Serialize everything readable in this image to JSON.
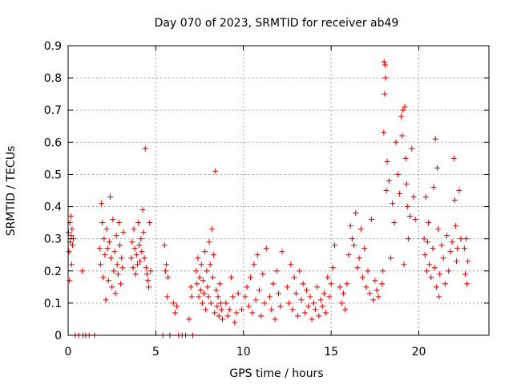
{
  "chart_data": {
    "type": "scatter",
    "title": "Day 070 of 2023, SRMTID for receiver ab49",
    "xlabel": "GPS time / hours",
    "ylabel": "SRMTID / TECUs",
    "xlim": [
      0,
      24
    ],
    "ylim": [
      0,
      0.9
    ],
    "xticks": [
      0,
      5,
      10,
      15,
      20
    ],
    "yticks": [
      0,
      0.1,
      0.2,
      0.3,
      0.4,
      0.5,
      0.6,
      0.7,
      0.8,
      0.9
    ],
    "xtick_labels": [
      "0",
      "5",
      "10",
      "15",
      "20"
    ],
    "ytick_labels": [
      "0",
      "0.1",
      "0.2",
      "0.3",
      "0.4",
      "0.5",
      "0.6",
      "0.7",
      "0.8",
      "0.9"
    ],
    "grid": true,
    "marker": "+",
    "color": "#ff0000",
    "series": [
      {
        "name": "SRMTID",
        "x": [
          0.02,
          0.05,
          0.08,
          0.1,
          0.12,
          0.15,
          0.18,
          0.2,
          0.22,
          0.25,
          0.3,
          0.4,
          0.6,
          0.8,
          0.85,
          1.0,
          1.2,
          1.5,
          1.8,
          1.85,
          1.9,
          1.95,
          2.0,
          2.05,
          2.1,
          2.15,
          2.2,
          2.25,
          2.3,
          2.35,
          2.4,
          2.45,
          2.5,
          2.55,
          2.6,
          2.65,
          2.7,
          2.75,
          2.8,
          2.85,
          2.9,
          2.95,
          3.0,
          3.05,
          3.1,
          3.15,
          3.6,
          3.65,
          3.7,
          3.75,
          3.8,
          3.85,
          3.9,
          3.95,
          4.0,
          4.05,
          4.1,
          4.15,
          4.2,
          4.25,
          4.3,
          4.35,
          4.4,
          4.45,
          4.5,
          4.55,
          4.6,
          4.65,
          4.7,
          5.4,
          5.5,
          5.55,
          5.6,
          5.65,
          5.7,
          5.8,
          6.0,
          6.1,
          6.2,
          6.3,
          6.5,
          6.7,
          6.9,
          7.0,
          7.05,
          7.1,
          7.3,
          7.35,
          7.4,
          7.45,
          7.5,
          7.55,
          7.6,
          7.65,
          7.7,
          7.75,
          7.8,
          7.85,
          7.9,
          7.95,
          8.0,
          8.05,
          8.1,
          8.15,
          8.2,
          8.25,
          8.3,
          8.35,
          8.4,
          8.45,
          8.5,
          8.55,
          8.6,
          8.65,
          8.7,
          8.75,
          8.8,
          9.0,
          9.1,
          9.2,
          9.3,
          9.4,
          9.5,
          9.6,
          9.7,
          9.9,
          10.1,
          10.2,
          10.3,
          10.4,
          10.5,
          10.6,
          10.7,
          10.8,
          10.9,
          11.0,
          11.1,
          11.2,
          11.3,
          11.5,
          11.6,
          11.7,
          11.8,
          11.9,
          12.0,
          12.1,
          12.2,
          12.5,
          12.6,
          12.7,
          12.8,
          12.9,
          13.0,
          13.1,
          13.2,
          13.3,
          13.4,
          13.5,
          13.6,
          13.7,
          13.8,
          13.9,
          14.0,
          14.1,
          14.2,
          14.3,
          14.4,
          14.5,
          14.6,
          14.7,
          14.8,
          14.9,
          15.0,
          15.1,
          15.2,
          15.5,
          15.6,
          15.7,
          15.8,
          15.9,
          16.0,
          16.1,
          16.2,
          16.3,
          16.4,
          16.5,
          16.6,
          16.7,
          16.8,
          16.9,
          17.0,
          17.1,
          17.2,
          17.3,
          17.4,
          17.5,
          17.6,
          17.7,
          17.9,
          17.95,
          18.0,
          18.02,
          18.05,
          18.08,
          18.1,
          18.15,
          18.2,
          18.3,
          18.4,
          18.5,
          18.6,
          18.7,
          18.8,
          18.9,
          19.0,
          19.05,
          19.1,
          19.15,
          19.2,
          19.25,
          19.3,
          19.35,
          19.4,
          19.5,
          19.6,
          19.7,
          19.8,
          20.3,
          20.35,
          20.4,
          20.45,
          20.5,
          20.55,
          20.6,
          20.7,
          20.8,
          20.85,
          20.9,
          20.95,
          21.0,
          21.05,
          21.1,
          21.15,
          21.2,
          21.3,
          21.4,
          21.5,
          21.6,
          21.7,
          21.8,
          21.9,
          22.0,
          22.05,
          22.1,
          22.15,
          22.2,
          22.3,
          22.4,
          22.6,
          22.65,
          22.7,
          22.75,
          22.8
        ],
        "y": [
          0.32,
          0.26,
          0.17,
          0.35,
          0.29,
          0.37,
          0.31,
          0.22,
          0.33,
          0.28,
          0.3,
          0.0,
          0.0,
          0.2,
          0.0,
          0.0,
          0.0,
          0.0,
          0.27,
          0.22,
          0.41,
          0.35,
          0.18,
          0.3,
          0.25,
          0.11,
          0.33,
          0.27,
          0.17,
          0.29,
          0.43,
          0.24,
          0.15,
          0.36,
          0.2,
          0.26,
          0.13,
          0.31,
          0.22,
          0.19,
          0.35,
          0.28,
          0.16,
          0.24,
          0.21,
          0.32,
          0.24,
          0.29,
          0.21,
          0.33,
          0.27,
          0.19,
          0.25,
          0.22,
          0.35,
          0.28,
          0.23,
          0.3,
          0.26,
          0.39,
          0.32,
          0.24,
          0.58,
          0.21,
          0.19,
          0.17,
          0.15,
          0.35,
          0.2,
          0.0,
          0.28,
          0.2,
          0.22,
          0.12,
          0.18,
          0.0,
          0.1,
          0.07,
          0.09,
          0.0,
          0.0,
          0.0,
          0.05,
          0.15,
          0.12,
          0.0,
          0.2,
          0.16,
          0.24,
          0.12,
          0.18,
          0.14,
          0.22,
          0.1,
          0.17,
          0.13,
          0.26,
          0.08,
          0.2,
          0.15,
          0.12,
          0.29,
          0.22,
          0.1,
          0.33,
          0.18,
          0.25,
          0.07,
          0.51,
          0.14,
          0.09,
          0.12,
          0.06,
          0.16,
          0.1,
          0.08,
          0.05,
          0.1,
          0.06,
          0.08,
          0.18,
          0.12,
          0.04,
          0.07,
          0.13,
          0.08,
          0.12,
          0.15,
          0.09,
          0.18,
          0.07,
          0.22,
          0.11,
          0.25,
          0.14,
          0.06,
          0.19,
          0.1,
          0.27,
          0.12,
          0.08,
          0.16,
          0.05,
          0.2,
          0.13,
          0.09,
          0.26,
          0.15,
          0.1,
          0.22,
          0.08,
          0.18,
          0.13,
          0.06,
          0.2,
          0.11,
          0.16,
          0.07,
          0.14,
          0.09,
          0.12,
          0.05,
          0.1,
          0.08,
          0.15,
          0.06,
          0.11,
          0.09,
          0.13,
          0.07,
          0.18,
          0.12,
          0.16,
          0.21,
          0.28,
          0.15,
          0.1,
          0.13,
          0.08,
          0.16,
          0.25,
          0.34,
          0.3,
          0.28,
          0.38,
          0.21,
          0.24,
          0.33,
          0.18,
          0.27,
          0.15,
          0.2,
          0.13,
          0.36,
          0.11,
          0.17,
          0.14,
          0.12,
          0.16,
          0.2,
          0.63,
          0.85,
          0.75,
          0.84,
          0.8,
          0.45,
          0.54,
          0.48,
          0.24,
          0.41,
          0.35,
          0.6,
          0.5,
          0.44,
          0.68,
          0.62,
          0.7,
          0.22,
          0.71,
          0.55,
          0.47,
          0.4,
          0.3,
          0.37,
          0.58,
          0.43,
          0.36,
          0.3,
          0.25,
          0.43,
          0.2,
          0.29,
          0.35,
          0.22,
          0.18,
          0.27,
          0.46,
          0.21,
          0.61,
          0.15,
          0.52,
          0.33,
          0.12,
          0.19,
          0.28,
          0.24,
          0.16,
          0.31,
          0.2,
          0.26,
          0.29,
          0.55,
          0.42,
          0.34,
          0.23,
          0.27,
          0.45,
          0.3,
          0.27,
          0.19,
          0.3,
          0.16,
          0.23
        ]
      }
    ]
  }
}
